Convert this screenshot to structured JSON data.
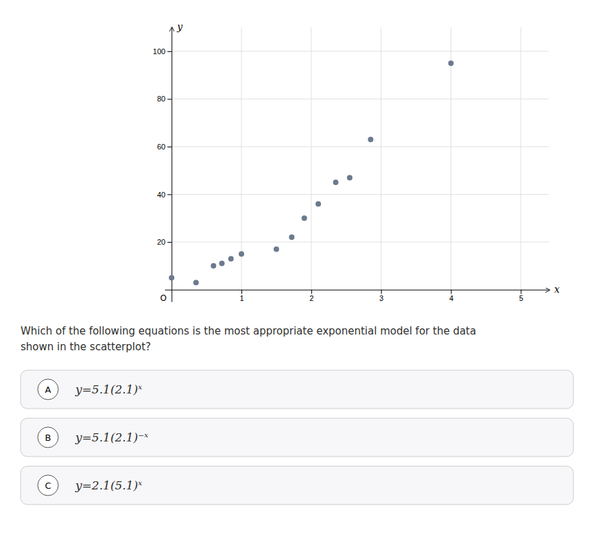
{
  "chart_data": {
    "type": "scatter",
    "x": [
      0.0,
      0.35,
      0.6,
      0.72,
      0.85,
      1.0,
      1.5,
      1.72,
      1.9,
      2.1,
      2.35,
      2.55,
      2.85,
      4.0
    ],
    "values": [
      5,
      3,
      10,
      11,
      13,
      15,
      17,
      22,
      30,
      36,
      45,
      47,
      63,
      95
    ],
    "color": "#6b7a8d",
    "xlim": [
      -0.1,
      5.4
    ],
    "ylim": [
      -5,
      110
    ],
    "xticks": [
      1,
      2,
      3,
      4,
      5
    ],
    "yticks": [
      20,
      40,
      60,
      80,
      100
    ],
    "x_label": "x",
    "y_label": "y",
    "origin_label": "O",
    "grid": true,
    "question": "Which of the following equations is the most appropriate exponential model for the data\nshown in the scatterplot?",
    "options": [
      {
        "label": "A",
        "text": "y=5.1(2.1)ˣ"
      },
      {
        "label": "B",
        "text": "y=5.1(2.1)⁻ˣ"
      },
      {
        "label": "C",
        "text": "y=2.1(5.1)ˣ"
      }
    ]
  }
}
